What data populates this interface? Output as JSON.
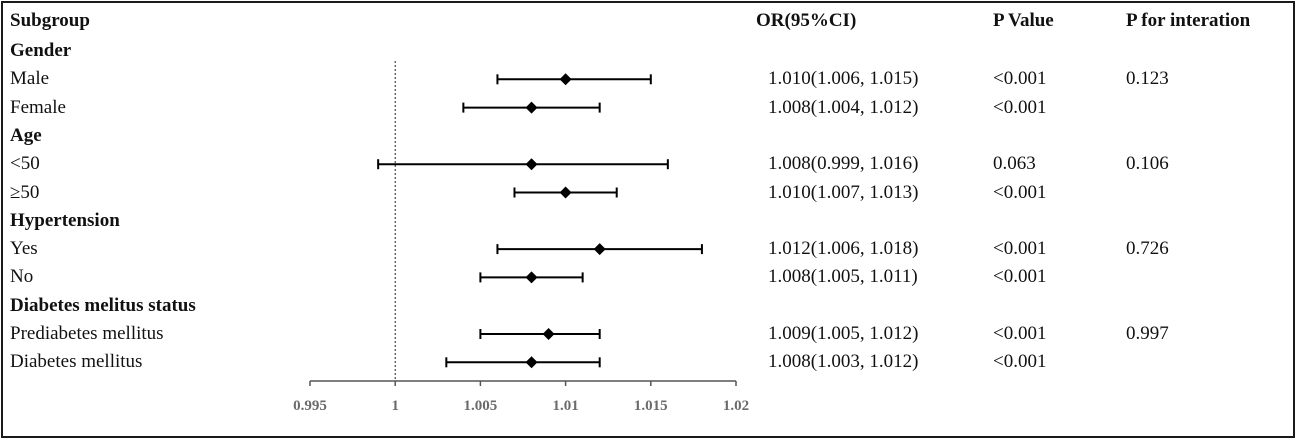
{
  "header": {
    "subgroup": "Subgroup",
    "or": "OR(95%CI)",
    "p_value": "P Value",
    "p_interaction": "P for interation"
  },
  "rows": [
    {
      "type": "category",
      "label": "Gender"
    },
    {
      "type": "item",
      "label": "Male",
      "or_text": "1.010(1.006, 1.015)",
      "p": "<0.001",
      "p_int": "0.123"
    },
    {
      "type": "item",
      "label": "Female",
      "or_text": "1.008(1.004, 1.012)",
      "p": "<0.001",
      "p_int": ""
    },
    {
      "type": "category",
      "label": "Age"
    },
    {
      "type": "item",
      "label": "<50",
      "or_text": "1.008(0.999, 1.016)",
      "p": "0.063",
      "p_int": "0.106"
    },
    {
      "type": "item",
      "label": "≥50",
      "or_text": "1.010(1.007, 1.013)",
      "p": "<0.001",
      "p_int": ""
    },
    {
      "type": "category",
      "label": "Hypertension"
    },
    {
      "type": "item",
      "label": "Yes",
      "or_text": "1.012(1.006, 1.018)",
      "p": "<0.001",
      "p_int": "0.726"
    },
    {
      "type": "item",
      "label": "No",
      "or_text": "1.008(1.005, 1.011)",
      "p": "<0.001",
      "p_int": ""
    },
    {
      "type": "category",
      "label": "Diabetes melitus status"
    },
    {
      "type": "item",
      "label": "Prediabetes mellitus",
      "or_text": "1.009(1.005, 1.012)",
      "p": "<0.001",
      "p_int": "0.997"
    },
    {
      "type": "item",
      "label": "Diabetes mellitus",
      "or_text": "1.008(1.003, 1.012)",
      "p": "<0.001",
      "p_int": ""
    }
  ],
  "chart_data": {
    "type": "forest",
    "reference_line": 1,
    "xlim": [
      0.995,
      1.02
    ],
    "xticks": [
      0.995,
      1,
      1.005,
      1.01,
      1.015,
      1.02
    ],
    "xtick_labels": [
      "0.995",
      "1",
      "1.005",
      "1.01",
      "1.015",
      "1.02"
    ],
    "points": [
      {
        "label": "Male",
        "or": 1.01,
        "lower": 1.006,
        "upper": 1.015
      },
      {
        "label": "Female",
        "or": 1.008,
        "lower": 1.004,
        "upper": 1.012
      },
      {
        "label": "<50",
        "or": 1.008,
        "lower": 0.999,
        "upper": 1.016
      },
      {
        "label": "≥50",
        "or": 1.01,
        "lower": 1.007,
        "upper": 1.013
      },
      {
        "label": "Yes",
        "or": 1.012,
        "lower": 1.006,
        "upper": 1.018
      },
      {
        "label": "No",
        "or": 1.008,
        "lower": 1.005,
        "upper": 1.011
      },
      {
        "label": "Prediabetes mellitus",
        "or": 1.009,
        "lower": 1.005,
        "upper": 1.012
      },
      {
        "label": "Diabetes mellitus",
        "or": 1.008,
        "lower": 1.003,
        "upper": 1.012
      }
    ],
    "colors": {
      "marks": "#000000",
      "axis": "#555555",
      "tick_label": "#6b6b6b"
    }
  }
}
